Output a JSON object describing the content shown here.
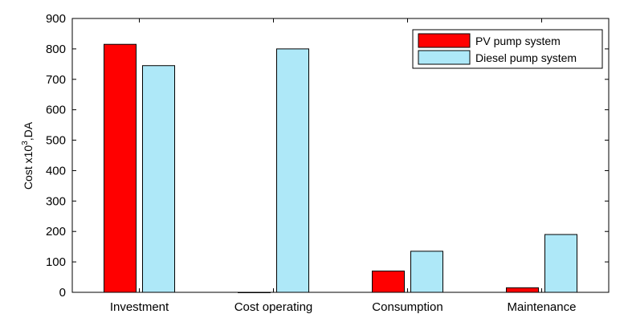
{
  "chart_data": {
    "type": "bar",
    "categories": [
      "Investment",
      "Cost operating",
      "Consumption",
      "Maintenance"
    ],
    "series": [
      {
        "name": "PV pump system",
        "values": [
          815,
          0,
          70,
          15
        ],
        "color": "#ff0000"
      },
      {
        "name": "Diesel pump system",
        "values": [
          745,
          800,
          135,
          190
        ],
        "color": "#aee8f8"
      }
    ],
    "ylabel": {
      "prefix": "Cost x10",
      "sup": "3",
      "suffix": ",DA"
    },
    "ylim": [
      0,
      900
    ],
    "yticks": [
      0,
      100,
      200,
      300,
      400,
      500,
      600,
      700,
      800,
      900
    ],
    "grid": false,
    "legend_position": "top-right"
  }
}
